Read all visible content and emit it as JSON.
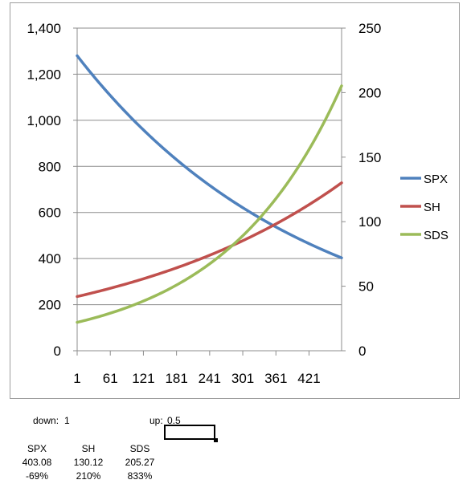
{
  "chart_data": {
    "type": "line",
    "x_ticks": [
      "1",
      "61",
      "121",
      "181",
      "241",
      "301",
      "361",
      "421"
    ],
    "y_left_ticks": [
      "0",
      "200",
      "400",
      "600",
      "800",
      "1,000",
      "1,200",
      "1,400"
    ],
    "y_right_ticks": [
      "0",
      "50",
      "100",
      "150",
      "200",
      "250"
    ],
    "xlim": [
      1,
      480
    ],
    "ylim_left": [
      0,
      1400
    ],
    "ylim_right": [
      0,
      250
    ],
    "grid": true,
    "legend_position": "right",
    "series": [
      {
        "name": "SPX",
        "axis": "left",
        "color": "#4f81bd",
        "start": 1280,
        "end": 403.08
      },
      {
        "name": "SH",
        "axis": "right",
        "color": "#c0504d",
        "start": 42,
        "end": 130.12
      },
      {
        "name": "SDS",
        "axis": "right",
        "color": "#9bbb59",
        "start": 22,
        "end": 205.27
      }
    ]
  },
  "params": {
    "down_label": "down:",
    "down_value": "1",
    "up_label": "up:",
    "up_value": "0.5"
  },
  "stats": [
    {
      "name": "SPX",
      "value": "403.08",
      "change": "-69%"
    },
    {
      "name": "SH",
      "value": "130.12",
      "change": "210%"
    },
    {
      "name": "SDS",
      "value": "205.27",
      "change": "833%"
    }
  ]
}
